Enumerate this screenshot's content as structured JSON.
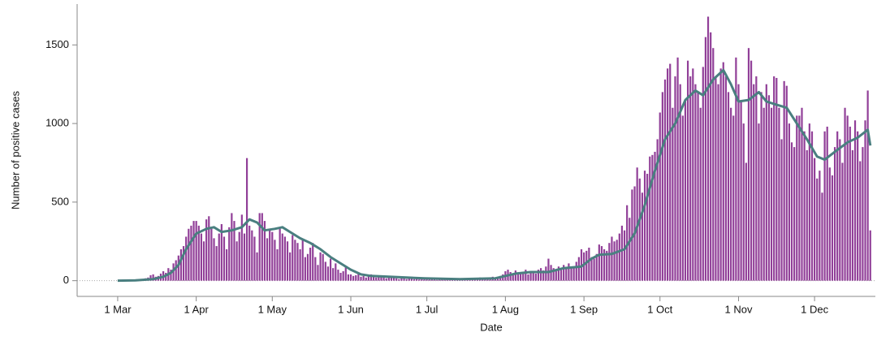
{
  "chart_data": {
    "type": "bar-line",
    "x_label": "Date",
    "y_label": "Number of positive cases",
    "xlim": [
      -16,
      299
    ],
    "ylim": [
      -100,
      1760
    ],
    "xticks": [
      {
        "value": 0,
        "label": "1 Mar"
      },
      {
        "value": 31,
        "label": "1 Apr"
      },
      {
        "value": 61,
        "label": "1 May"
      },
      {
        "value": 92,
        "label": "1 Jun"
      },
      {
        "value": 122,
        "label": "1 Jul"
      },
      {
        "value": 153,
        "label": "1 Aug"
      },
      {
        "value": 184,
        "label": "1 Sep"
      },
      {
        "value": 214,
        "label": "1 Oct"
      },
      {
        "value": 245,
        "label": "1 Nov"
      },
      {
        "value": 275,
        "label": "1 Dec"
      }
    ],
    "yticks": [
      0,
      500,
      1000,
      1500
    ],
    "series": [
      {
        "kind": "bar",
        "color": "#913f98",
        "x": [
          0,
          1,
          2,
          3,
          4,
          5,
          6,
          7,
          8,
          9,
          10,
          11,
          12,
          13,
          14,
          15,
          16,
          17,
          18,
          19,
          20,
          21,
          22,
          23,
          24,
          25,
          26,
          27,
          28,
          29,
          30,
          31,
          32,
          33,
          34,
          35,
          36,
          37,
          38,
          39,
          40,
          41,
          42,
          43,
          44,
          45,
          46,
          47,
          48,
          49,
          50,
          51,
          52,
          53,
          54,
          55,
          56,
          57,
          58,
          59,
          60,
          61,
          62,
          63,
          64,
          65,
          66,
          67,
          68,
          69,
          70,
          71,
          72,
          73,
          74,
          75,
          76,
          77,
          78,
          79,
          80,
          81,
          82,
          83,
          84,
          85,
          86,
          87,
          88,
          89,
          90,
          91,
          92,
          93,
          94,
          95,
          96,
          97,
          98,
          99,
          100,
          101,
          102,
          103,
          104,
          105,
          106,
          107,
          108,
          109,
          110,
          111,
          112,
          113,
          114,
          115,
          116,
          117,
          118,
          119,
          120,
          121,
          122,
          123,
          124,
          125,
          126,
          127,
          128,
          129,
          130,
          131,
          132,
          133,
          134,
          135,
          136,
          137,
          138,
          139,
          140,
          141,
          142,
          143,
          144,
          145,
          146,
          147,
          148,
          149,
          150,
          151,
          152,
          153,
          154,
          155,
          156,
          157,
          158,
          159,
          160,
          161,
          162,
          163,
          164,
          165,
          166,
          167,
          168,
          169,
          170,
          171,
          172,
          173,
          174,
          175,
          176,
          177,
          178,
          179,
          180,
          181,
          182,
          183,
          184,
          185,
          186,
          187,
          188,
          189,
          190,
          191,
          192,
          193,
          194,
          195,
          196,
          197,
          198,
          199,
          200,
          201,
          202,
          203,
          204,
          205,
          206,
          207,
          208,
          209,
          210,
          211,
          212,
          213,
          214,
          215,
          216,
          217,
          218,
          219,
          220,
          221,
          222,
          223,
          224,
          225,
          226,
          227,
          228,
          229,
          230,
          231,
          232,
          233,
          234,
          235,
          236,
          237,
          238,
          239,
          240,
          241,
          242,
          243,
          244,
          245,
          246,
          247,
          248,
          249,
          250,
          251,
          252,
          253,
          254,
          255,
          256,
          257,
          258,
          259,
          260,
          261,
          262,
          263,
          264,
          265,
          266,
          267,
          268,
          269,
          270,
          271,
          272,
          273,
          274,
          275,
          276,
          277,
          278,
          279,
          280,
          281,
          282,
          283,
          284,
          285,
          286,
          287,
          288,
          289,
          290,
          291,
          292,
          293,
          294,
          295,
          296,
          297
        ],
        "values": [
          0,
          0,
          0,
          1,
          1,
          2,
          3,
          5,
          6,
          8,
          10,
          15,
          20,
          35,
          40,
          25,
          30,
          45,
          60,
          50,
          80,
          70,
          110,
          130,
          160,
          200,
          220,
          280,
          330,
          350,
          380,
          380,
          350,
          300,
          250,
          390,
          410,
          330,
          270,
          220,
          300,
          360,
          280,
          200,
          340,
          430,
          380,
          250,
          310,
          420,
          300,
          780,
          350,
          320,
          280,
          180,
          430,
          430,
          380,
          270,
          320,
          310,
          260,
          200,
          330,
          300,
          280,
          250,
          180,
          290,
          260,
          240,
          200,
          260,
          150,
          170,
          210,
          240,
          150,
          100,
          180,
          170,
          120,
          90,
          140,
          80,
          110,
          70,
          50,
          60,
          90,
          40,
          40,
          30,
          35,
          50,
          25,
          30,
          20,
          35,
          40,
          25,
          20,
          30,
          25,
          20,
          15,
          25,
          30,
          20,
          15,
          10,
          15,
          20,
          10,
          15,
          12,
          10,
          15,
          8,
          10,
          12,
          10,
          8,
          12,
          10,
          5,
          8,
          10,
          12,
          15,
          8,
          10,
          12,
          8,
          10,
          15,
          10,
          12,
          15,
          18,
          12,
          15,
          20,
          15,
          10,
          18,
          20,
          25,
          20,
          15,
          30,
          40,
          60,
          70,
          55,
          40,
          65,
          50,
          45,
          55,
          70,
          40,
          50,
          60,
          45,
          70,
          80,
          65,
          90,
          140,
          100,
          80,
          60,
          90,
          75,
          100,
          85,
          110,
          90,
          80,
          120,
          150,
          200,
          180,
          190,
          210,
          150,
          140,
          170,
          230,
          220,
          200,
          190,
          240,
          280,
          250,
          260,
          300,
          350,
          320,
          480,
          400,
          580,
          600,
          720,
          650,
          560,
          700,
          680,
          790,
          800,
          820,
          900,
          1070,
          1200,
          1280,
          1350,
          1380,
          1100,
          1300,
          1420,
          1250,
          1050,
          1150,
          1400,
          1300,
          1350,
          1250,
          1200,
          1100,
          1360,
          1550,
          1680,
          1580,
          1480,
          1300,
          1250,
          1350,
          1390,
          1300,
          1200,
          1100,
          1050,
          1420,
          1250,
          1150,
          1000,
          750,
          1480,
          1400,
          1250,
          1300,
          1000,
          1200,
          1100,
          1250,
          1180,
          1100,
          1300,
          1290,
          1100,
          900,
          1270,
          1240,
          1000,
          880,
          850,
          1050,
          1050,
          1100,
          950,
          830,
          1000,
          950,
          780,
          650,
          700,
          560,
          950,
          980,
          720,
          670,
          850,
          950,
          900,
          750,
          1100,
          1050,
          980,
          830,
          1020,
          950,
          760,
          850,
          1020,
          1210,
          320
        ]
      },
      {
        "kind": "line",
        "color": "#4a7f80",
        "x": [
          0,
          7,
          14,
          18,
          21,
          24,
          27,
          31,
          35,
          38,
          41,
          45,
          49,
          52,
          55,
          58,
          62,
          65,
          68,
          72,
          76,
          80,
          84,
          88,
          92,
          96,
          100,
          107,
          114,
          121,
          128,
          135,
          142,
          149,
          153,
          157,
          163,
          170,
          176,
          183,
          187,
          190,
          195,
          200,
          204,
          208,
          212,
          216,
          220,
          224,
          228,
          231,
          235,
          239,
          242,
          245,
          249,
          253,
          256,
          260,
          264,
          268,
          272,
          276,
          279,
          283,
          288,
          292,
          296,
          297
        ],
        "values": [
          0,
          2,
          10,
          25,
          50,
          100,
          200,
          300,
          330,
          340,
          310,
          320,
          340,
          390,
          370,
          320,
          330,
          340,
          310,
          270,
          240,
          200,
          150,
          110,
          70,
          40,
          30,
          25,
          20,
          15,
          12,
          10,
          12,
          15,
          30,
          45,
          55,
          55,
          80,
          90,
          140,
          165,
          170,
          200,
          300,
          480,
          700,
          900,
          1000,
          1150,
          1210,
          1180,
          1280,
          1340,
          1250,
          1140,
          1150,
          1200,
          1140,
          1120,
          1100,
          1000,
          900,
          790,
          770,
          820,
          880,
          910,
          960,
          860
        ]
      }
    ]
  }
}
